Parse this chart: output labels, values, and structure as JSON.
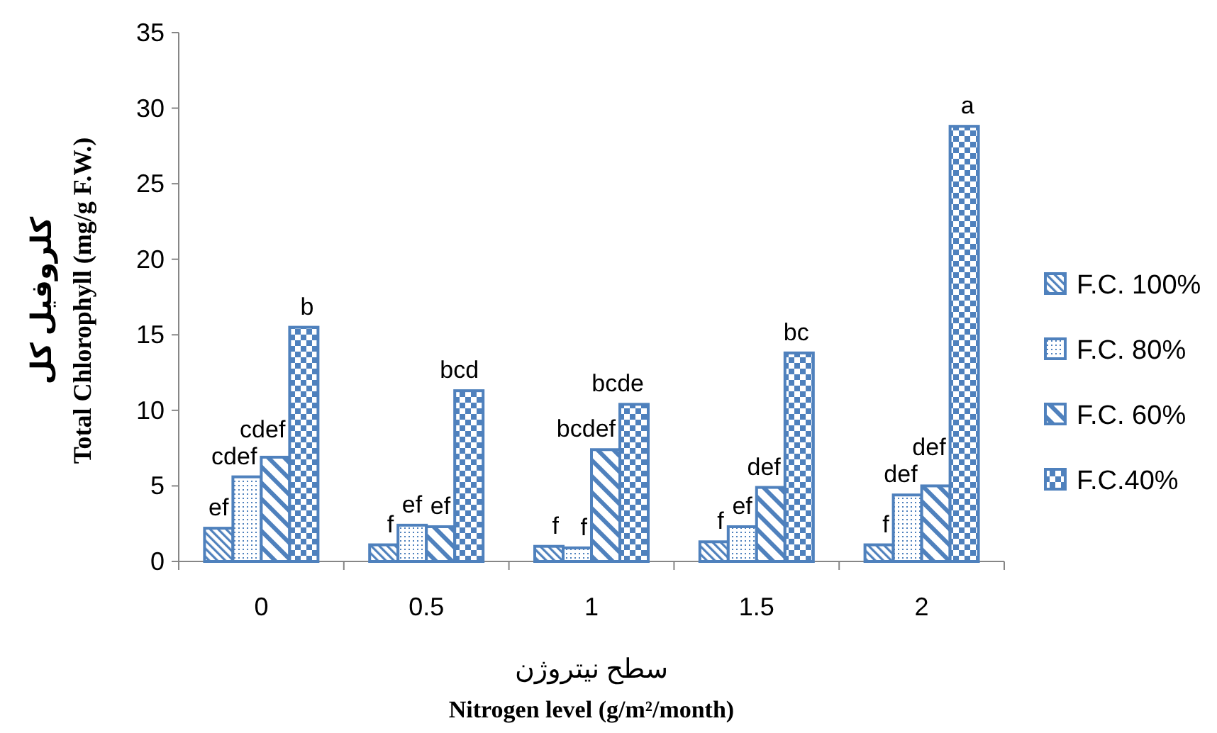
{
  "chart_data": {
    "type": "bar",
    "xlabel": "سطح نیتروژن\nNitrogen level (g/m²/month)",
    "ylabel": "کلروفیل کل\nTotal Chlorophyll (mg/g F.W.)",
    "categories": [
      "0",
      "0.5",
      "1",
      "1.5",
      "2"
    ],
    "series": [
      {
        "name": "F.C. 100%",
        "color": "#4f81bd",
        "values": [
          2.2,
          1.1,
          1.0,
          1.3,
          1.1
        ],
        "value_labels": [
          "ef",
          "f",
          "f",
          "f",
          "f"
        ]
      },
      {
        "name": "F.C. 80%",
        "color": "#4f81bd",
        "values": [
          5.6,
          2.4,
          0.9,
          2.3,
          4.4
        ],
        "value_labels": [
          "cdef",
          "ef",
          "f",
          "ef",
          "def"
        ]
      },
      {
        "name": "F.C. 60%",
        "color": "#4f81bd",
        "values": [
          6.9,
          2.3,
          7.4,
          4.9,
          5.0
        ],
        "value_labels": [
          "cdef",
          "ef",
          "bcdef",
          "def",
          "def"
        ]
      },
      {
        "name": "F.C.40%",
        "color": "#4f81bd",
        "values": [
          15.5,
          11.3,
          10.4,
          13.8,
          28.8
        ],
        "value_labels": [
          "b",
          "bcd",
          "bcde",
          "bc",
          "a"
        ]
      }
    ],
    "ylim": [
      0,
      35
    ],
    "yticks": [
      0,
      5,
      10,
      15,
      20,
      25,
      30,
      35
    ],
    "legend": "right"
  }
}
